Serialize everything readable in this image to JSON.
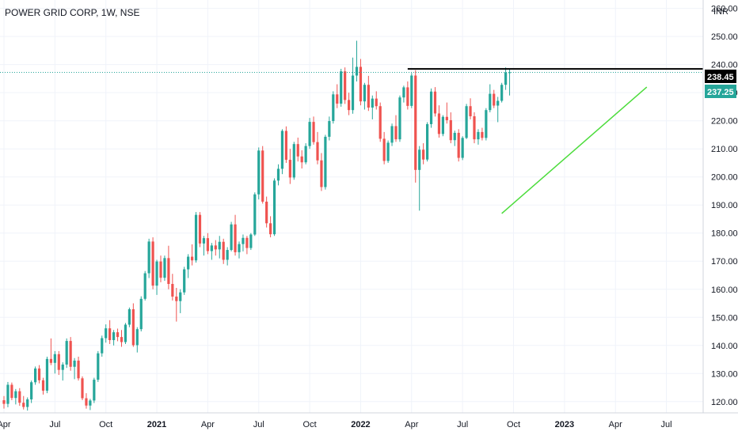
{
  "chart_data": {
    "type": "candlestick",
    "title": "POWER GRID CORP, 1W, NSE",
    "currency": "INR",
    "y_ticks": [
      120,
      130,
      140,
      150,
      160,
      170,
      180,
      190,
      200,
      210,
      220,
      230,
      240,
      250,
      260
    ],
    "y_tick_labels": [
      "120.00",
      "130.00",
      "140.00",
      "150.00",
      "160.00",
      "170.00",
      "180.00",
      "190.00",
      "200.00",
      "210.00",
      "220.00",
      "230.00",
      "240.00",
      "250.00",
      "260.00"
    ],
    "ylim": [
      116,
      263
    ],
    "x_labels": [
      "Apr",
      "Jul",
      "Oct",
      "2021",
      "Apr",
      "Jul",
      "Oct",
      "2022",
      "Apr",
      "Jul",
      "Oct",
      "2023",
      "Apr",
      "Jul"
    ],
    "x_label_bold": [
      false,
      false,
      false,
      true,
      false,
      false,
      false,
      true,
      false,
      false,
      false,
      true,
      false,
      false
    ],
    "x_label_index": [
      0,
      13,
      26,
      39,
      52,
      65,
      78,
      91,
      104,
      117,
      130,
      143,
      156,
      169
    ],
    "resistance_level": 238.45,
    "last_price": 237.25,
    "price_badges": [
      "238.45",
      "237.25"
    ],
    "colors": {
      "up": "#26a69a",
      "down": "#ef5350",
      "resistance": "#000000",
      "trendline": "#4cdc3c",
      "last_price": "#26a69a"
    },
    "resistance_line": {
      "from_index": 103,
      "to_index": 181,
      "value": 238.45
    },
    "support_trendline": {
      "from_index": 127,
      "from_value": 187,
      "to_index": 164,
      "to_value": 232
    },
    "candles": [
      [
        120.5,
        122.0,
        117.5,
        119.2
      ],
      [
        119.2,
        127.0,
        118.0,
        126.0
      ],
      [
        126.0,
        126.8,
        120.5,
        121.3
      ],
      [
        121.3,
        124.5,
        119.0,
        123.7
      ],
      [
        123.7,
        124.8,
        118.5,
        119.6
      ],
      [
        119.6,
        122.0,
        117.2,
        118.1
      ],
      [
        118.1,
        121.5,
        116.8,
        120.8
      ],
      [
        120.8,
        127.5,
        119.5,
        126.9
      ],
      [
        126.9,
        132.5,
        126.0,
        131.8
      ],
      [
        131.8,
        133.0,
        126.5,
        127.6
      ],
      [
        127.6,
        128.5,
        122.5,
        123.9
      ],
      [
        123.9,
        136.0,
        123.0,
        135.2
      ],
      [
        135.2,
        142.5,
        133.0,
        133.8
      ],
      [
        133.8,
        138.0,
        130.0,
        136.9
      ],
      [
        136.9,
        138.0,
        129.5,
        131.3
      ],
      [
        131.3,
        134.0,
        127.5,
        133.2
      ],
      [
        133.2,
        142.5,
        132.0,
        141.6
      ],
      [
        141.6,
        143.0,
        131.0,
        132.4
      ],
      [
        132.4,
        135.5,
        128.0,
        134.6
      ],
      [
        134.6,
        136.0,
        127.5,
        128.3
      ],
      [
        128.3,
        129.0,
        120.5,
        121.2
      ],
      [
        121.2,
        123.0,
        117.5,
        118.6
      ],
      [
        118.6,
        121.0,
        117.0,
        120.4
      ],
      [
        120.4,
        128.5,
        119.5,
        127.8
      ],
      [
        127.8,
        138.0,
        127.0,
        137.2
      ],
      [
        137.2,
        143.5,
        136.0,
        142.6
      ],
      [
        142.6,
        147.5,
        141.0,
        146.1
      ],
      [
        146.1,
        149.0,
        140.5,
        141.9
      ],
      [
        141.9,
        145.5,
        140.0,
        144.7
      ],
      [
        144.7,
        146.0,
        141.5,
        143.0
      ],
      [
        143.0,
        145.5,
        139.5,
        141.2
      ],
      [
        141.2,
        148.0,
        140.5,
        147.4
      ],
      [
        147.4,
        153.5,
        146.5,
        152.9
      ],
      [
        152.9,
        155.0,
        139.5,
        140.1
      ],
      [
        140.1,
        146.5,
        137.5,
        145.8
      ],
      [
        145.8,
        157.5,
        145.0,
        156.6
      ],
      [
        156.6,
        166.5,
        156.0,
        165.7
      ],
      [
        165.7,
        178.0,
        164.0,
        177.0
      ],
      [
        177.0,
        178.5,
        160.0,
        161.3
      ],
      [
        161.3,
        170.5,
        158.0,
        169.9
      ],
      [
        169.9,
        172.0,
        162.5,
        164.1
      ],
      [
        164.1,
        172.0,
        163.0,
        171.1
      ],
      [
        171.1,
        175.5,
        160.0,
        161.9
      ],
      [
        161.9,
        165.5,
        156.0,
        157.4
      ],
      [
        157.4,
        160.5,
        148.5,
        155.8
      ],
      [
        155.8,
        160.0,
        151.5,
        158.9
      ],
      [
        158.9,
        168.0,
        158.0,
        167.1
      ],
      [
        167.1,
        172.5,
        164.0,
        171.6
      ],
      [
        171.6,
        176.0,
        168.5,
        170.3
      ],
      [
        170.3,
        187.5,
        169.5,
        186.5
      ],
      [
        186.5,
        187.5,
        175.0,
        176.3
      ],
      [
        176.3,
        179.0,
        172.0,
        178.2
      ],
      [
        178.2,
        180.0,
        172.5,
        173.6
      ],
      [
        173.6,
        176.5,
        170.5,
        175.6
      ],
      [
        175.6,
        177.5,
        172.0,
        174.2
      ],
      [
        174.2,
        179.0,
        171.0,
        176.9
      ],
      [
        176.9,
        178.0,
        169.0,
        170.5
      ],
      [
        170.5,
        175.0,
        168.5,
        174.0
      ],
      [
        174.0,
        184.0,
        173.5,
        183.1
      ],
      [
        183.1,
        186.5,
        172.0,
        173.2
      ],
      [
        173.2,
        177.0,
        171.0,
        176.1
      ],
      [
        176.1,
        179.5,
        173.5,
        178.3
      ],
      [
        178.3,
        179.0,
        172.5,
        174.7
      ],
      [
        174.7,
        180.0,
        174.0,
        179.5
      ],
      [
        179.5,
        194.5,
        179.0,
        193.8
      ],
      [
        193.8,
        210.5,
        192.0,
        209.4
      ],
      [
        209.4,
        211.0,
        190.5,
        191.2
      ],
      [
        191.2,
        193.0,
        182.0,
        183.5
      ],
      [
        183.5,
        186.0,
        178.5,
        179.6
      ],
      [
        179.6,
        199.5,
        179.0,
        198.7
      ],
      [
        198.7,
        204.5,
        197.0,
        202.9
      ],
      [
        202.9,
        217.0,
        201.0,
        216.4
      ],
      [
        216.4,
        218.0,
        205.0,
        206.1
      ],
      [
        206.1,
        210.0,
        197.5,
        199.8
      ],
      [
        199.8,
        212.5,
        199.0,
        211.7
      ],
      [
        211.7,
        214.0,
        205.5,
        207.3
      ],
      [
        207.3,
        209.5,
        203.0,
        205.2
      ],
      [
        205.2,
        212.0,
        204.5,
        211.0
      ],
      [
        211.0,
        221.0,
        210.0,
        219.6
      ],
      [
        219.6,
        221.5,
        211.5,
        212.4
      ],
      [
        212.4,
        216.0,
        204.5,
        205.9
      ],
      [
        205.9,
        208.5,
        195.0,
        196.4
      ],
      [
        196.4,
        215.0,
        195.5,
        214.3
      ],
      [
        214.3,
        221.5,
        213.0,
        219.9
      ],
      [
        219.9,
        230.5,
        219.0,
        229.4
      ],
      [
        229.4,
        233.0,
        224.5,
        226.1
      ],
      [
        226.1,
        238.5,
        225.0,
        237.6
      ],
      [
        237.6,
        239.0,
        226.0,
        227.4
      ],
      [
        227.4,
        230.0,
        222.0,
        223.8
      ],
      [
        223.8,
        242.5,
        222.5,
        236.1
      ],
      [
        236.1,
        248.5,
        234.0,
        239.2
      ],
      [
        239.2,
        242.0,
        225.5,
        226.9
      ],
      [
        226.9,
        233.5,
        224.0,
        232.8
      ],
      [
        232.8,
        236.0,
        223.5,
        224.7
      ],
      [
        224.7,
        229.0,
        220.5,
        227.9
      ],
      [
        227.9,
        230.5,
        224.0,
        225.2
      ],
      [
        225.2,
        226.5,
        212.5,
        213.6
      ],
      [
        213.6,
        216.0,
        204.5,
        205.7
      ],
      [
        205.7,
        213.0,
        205.0,
        212.2
      ],
      [
        212.2,
        219.0,
        211.0,
        218.1
      ],
      [
        218.1,
        222.0,
        212.5,
        213.4
      ],
      [
        213.4,
        229.0,
        212.5,
        228.3
      ],
      [
        228.3,
        232.5,
        226.5,
        231.9
      ],
      [
        231.9,
        234.0,
        224.0,
        225.3
      ],
      [
        225.3,
        237.0,
        224.5,
        236.1
      ],
      [
        236.1,
        238.0,
        198.0,
        202.5
      ],
      [
        202.5,
        211.0,
        188.0,
        209.7
      ],
      [
        209.7,
        212.0,
        204.5,
        206.2
      ],
      [
        206.2,
        219.5,
        205.5,
        218.8
      ],
      [
        218.8,
        231.5,
        217.5,
        230.4
      ],
      [
        230.4,
        232.0,
        221.5,
        222.6
      ],
      [
        222.6,
        225.5,
        214.0,
        215.3
      ],
      [
        215.3,
        222.0,
        214.5,
        221.4
      ],
      [
        221.4,
        226.5,
        219.0,
        220.2
      ],
      [
        220.2,
        223.0,
        212.0,
        213.1
      ],
      [
        213.1,
        216.5,
        211.0,
        215.7
      ],
      [
        215.7,
        217.0,
        205.5,
        206.8
      ],
      [
        206.8,
        214.5,
        206.0,
        213.9
      ],
      [
        213.9,
        226.0,
        213.5,
        225.2
      ],
      [
        225.2,
        228.0,
        220.5,
        221.6
      ],
      [
        221.6,
        223.0,
        212.0,
        213.4
      ],
      [
        213.4,
        217.0,
        211.5,
        216.0
      ],
      [
        216.0,
        217.5,
        213.0,
        213.9
      ],
      [
        213.9,
        224.5,
        213.0,
        223.8
      ],
      [
        223.8,
        233.0,
        223.0,
        229.6
      ],
      [
        229.6,
        231.0,
        224.5,
        225.4
      ],
      [
        225.4,
        228.5,
        219.5,
        227.1
      ],
      [
        227.1,
        233.5,
        226.5,
        232.8
      ],
      [
        232.8,
        239.0,
        231.0,
        237.2
      ],
      [
        237.2,
        238.5,
        229.0,
        237.25
      ]
    ]
  }
}
